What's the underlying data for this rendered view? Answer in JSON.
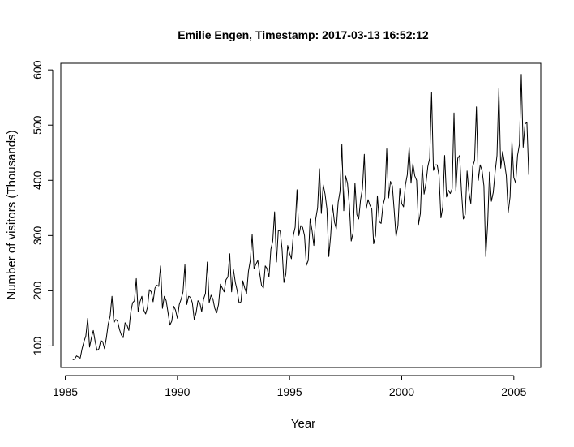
{
  "chart_data": {
    "type": "line",
    "title": "Emilie Engen, Timestamp: 2017-03-13 16:52:12",
    "xlabel": "Year",
    "ylabel": "Number of visitors (Thousands)",
    "xlim": [
      1984.8,
      2006.2
    ],
    "ylim": [
      61,
      612
    ],
    "x_ticks": [
      1985,
      1990,
      1995,
      2000,
      2005
    ],
    "x_tick_labels": [
      "1985",
      "1990",
      "1995",
      "2000",
      "2005"
    ],
    "y_ticks": [
      100,
      200,
      300,
      400,
      500,
      600
    ],
    "y_tick_labels": [
      "100",
      "200",
      "300",
      "400",
      "500",
      "600"
    ],
    "grid": false,
    "legend": "none",
    "series": [
      {
        "x_start": 1985.333,
        "x_step": 0.08333,
        "values": [
          75,
          76,
          82,
          80,
          78,
          95,
          108,
          118,
          150,
          98,
          115,
          128,
          108,
          92,
          95,
          110,
          108,
          95,
          115,
          140,
          154,
          190,
          142,
          148,
          145,
          130,
          120,
          115,
          142,
          138,
          128,
          160,
          178,
          182,
          222,
          162,
          180,
          190,
          165,
          158,
          170,
          202,
          198,
          180,
          205,
          210,
          208,
          245,
          168,
          190,
          182,
          160,
          138,
          145,
          172,
          165,
          150,
          175,
          185,
          198,
          247,
          175,
          190,
          188,
          178,
          148,
          160,
          182,
          178,
          162,
          185,
          195,
          252,
          178,
          192,
          185,
          168,
          160,
          175,
          212,
          205,
          198,
          220,
          225,
          267,
          198,
          238,
          215,
          200,
          178,
          180,
          218,
          205,
          195,
          235,
          255,
          302,
          240,
          248,
          255,
          232,
          210,
          205,
          245,
          240,
          225,
          275,
          290,
          343,
          252,
          310,
          308,
          275,
          215,
          230,
          282,
          268,
          258,
          300,
          315,
          383,
          300,
          318,
          315,
          300,
          246,
          255,
          330,
          310,
          282,
          330,
          350,
          421,
          340,
          392,
          375,
          348,
          262,
          300,
          355,
          325,
          312,
          360,
          380,
          465,
          345,
          408,
          395,
          355,
          290,
          305,
          395,
          338,
          330,
          365,
          385,
          447,
          348,
          365,
          355,
          348,
          285,
          300,
          372,
          325,
          322,
          355,
          368,
          457,
          368,
          398,
          390,
          345,
          298,
          318,
          385,
          358,
          352,
          392,
          410,
          460,
          395,
          430,
          408,
          400,
          320,
          340,
          427,
          375,
          395,
          425,
          440,
          559,
          418,
          428,
          428,
          408,
          332,
          352,
          445,
          370,
          382,
          376,
          385,
          522,
          380,
          440,
          445,
          380,
          330,
          338,
          417,
          378,
          358,
          425,
          436,
          533,
          400,
          428,
          418,
          390,
          262,
          320,
          415,
          362,
          378,
          415,
          445,
          566,
          422,
          452,
          432,
          408,
          342,
          370,
          470,
          405,
          395,
          445,
          465,
          592,
          460,
          502,
          505,
          410
        ]
      }
    ]
  }
}
